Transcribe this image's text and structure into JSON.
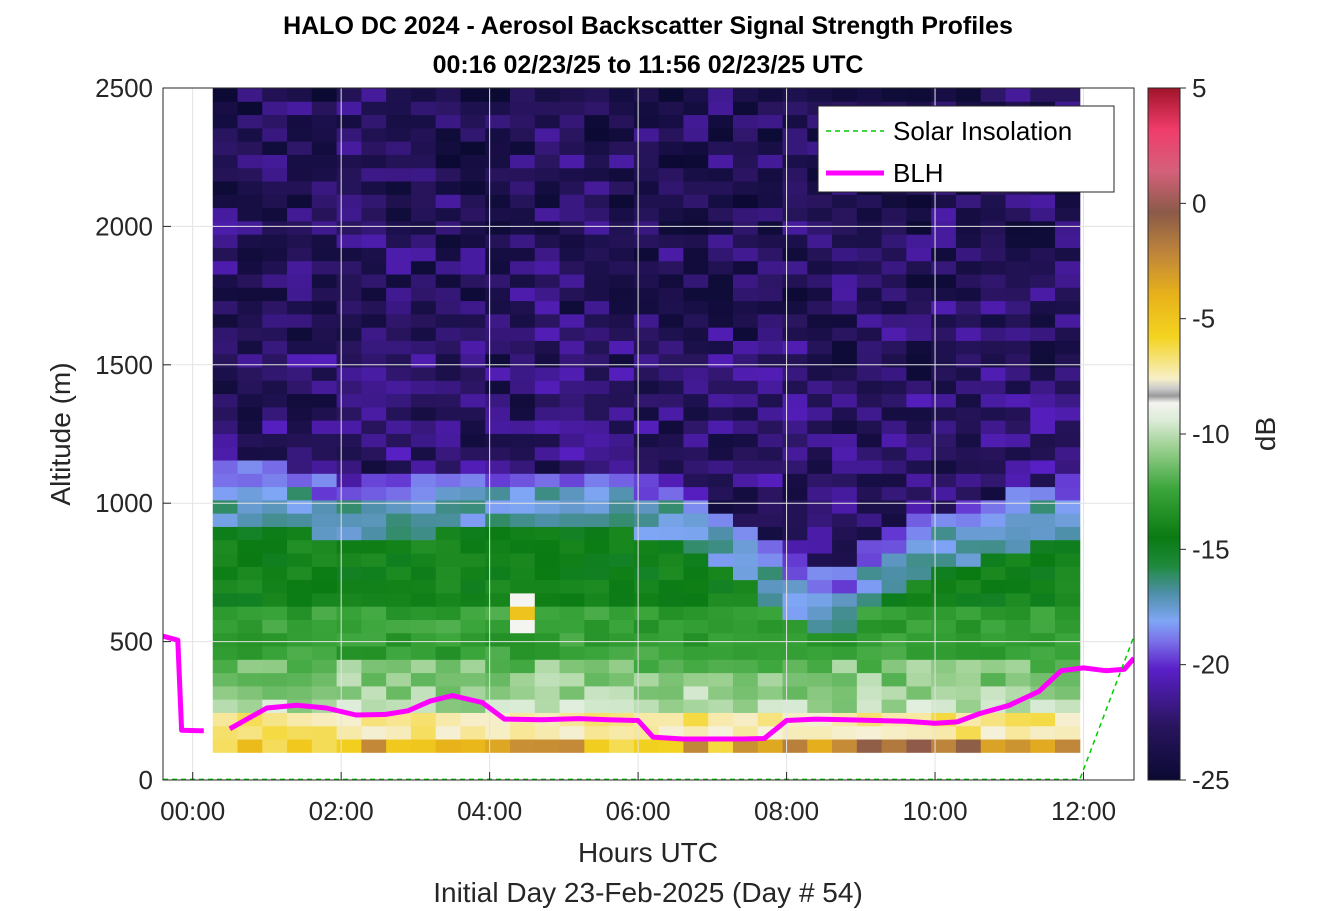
{
  "chart_data": {
    "type": "heatmap",
    "title": "HALO DC 2024 - Aerosol Backscatter Signal Strength Profiles",
    "subtitle": "00:16 02/23/25 to 11:56 02/23/25  UTC",
    "xlabel": "Hours UTC",
    "xlabel2": "Initial Day 23-Feb-2025 (Day # 54)",
    "ylabel": "Altitude (m)",
    "colorbar_label": "dB",
    "xlim": [
      -0.4,
      12.68
    ],
    "ylim": [
      0,
      2500
    ],
    "x_ticks": [
      "00:00",
      "02:00",
      "04:00",
      "06:00",
      "08:00",
      "10:00",
      "12:00"
    ],
    "y_ticks": [
      "0",
      "500",
      "1000",
      "1500",
      "2000",
      "2500"
    ],
    "colorbar_ticks": [
      "5",
      "0",
      "-5",
      "-10",
      "-15",
      "-20",
      "-25"
    ],
    "clim": [
      -25,
      5
    ],
    "grid": true,
    "legend": {
      "location": "top-right",
      "entries": [
        "Solar Insolation",
        "BLH"
      ]
    },
    "heatmap": {
      "x_start_hours": 0.27,
      "x_end_hours": 11.95,
      "y_start_m": 100,
      "y_end_m": 2500,
      "columns": 35,
      "bin_m": 48,
      "units": "dB"
    },
    "series": [
      {
        "name": "BLH",
        "color": "#ff00ff",
        "segments": [
          [
            [
              -0.4,
              520
            ],
            [
              -0.2,
              505
            ],
            [
              -0.15,
              180
            ],
            [
              0.1,
              178
            ],
            [
              0.15,
              178
            ]
          ],
          [
            [
              0.5,
              185
            ],
            [
              1.0,
              260
            ],
            [
              1.4,
              270
            ],
            [
              1.8,
              260
            ],
            [
              2.2,
              235
            ],
            [
              2.6,
              237
            ],
            [
              2.9,
              250
            ],
            [
              3.2,
              285
            ],
            [
              3.5,
              305
            ],
            [
              3.9,
              280
            ],
            [
              4.2,
              220
            ],
            [
              4.7,
              218
            ],
            [
              5.2,
              222
            ],
            [
              5.6,
              218
            ],
            [
              6.0,
              215
            ],
            [
              6.2,
              155
            ],
            [
              6.6,
              148
            ],
            [
              7.0,
              148
            ],
            [
              7.4,
              148
            ],
            [
              7.7,
              150
            ],
            [
              8.0,
              215
            ],
            [
              8.4,
              220
            ],
            [
              8.8,
              218
            ],
            [
              9.2,
              215
            ],
            [
              9.6,
              212
            ],
            [
              10.0,
              205
            ],
            [
              10.3,
              210
            ],
            [
              10.6,
              240
            ],
            [
              11.0,
              270
            ],
            [
              11.4,
              320
            ],
            [
              11.7,
              395
            ],
            [
              12.0,
              405
            ],
            [
              12.3,
              395
            ],
            [
              12.55,
              400
            ],
            [
              12.68,
              440
            ]
          ]
        ]
      },
      {
        "name": "Solar Insolation",
        "color": "#00cc00",
        "points": [
          [
            -0.4,
            2
          ],
          [
            11.95,
            2
          ],
          [
            12.68,
            520
          ]
        ]
      }
    ]
  }
}
